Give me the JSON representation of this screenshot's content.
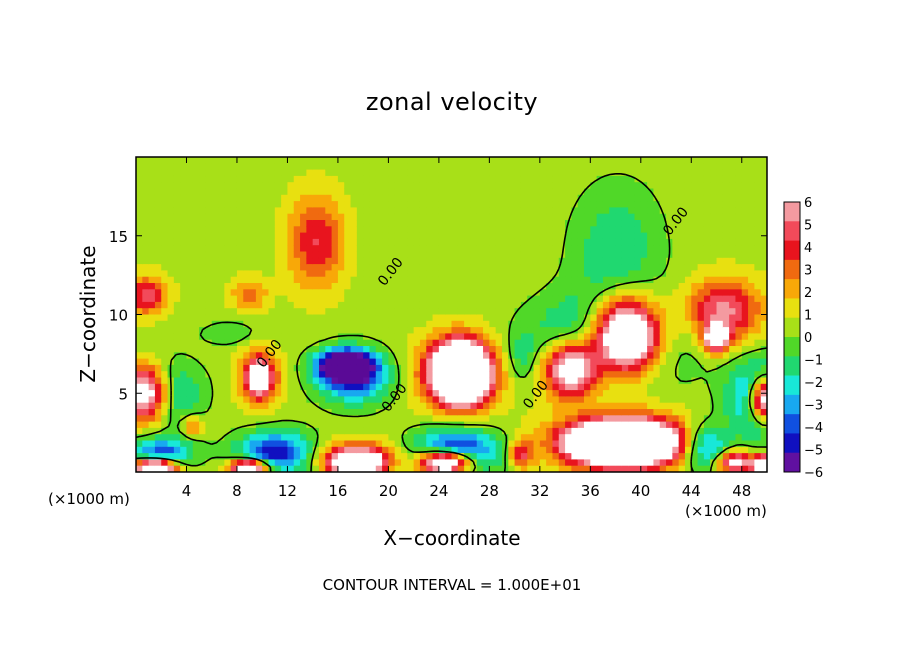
{
  "chart_data": {
    "type": "heatmap",
    "title": "zonal velocity",
    "xlabel": "X−coordinate",
    "ylabel": "Z−coordinate",
    "x_unit": "(×1000 m)",
    "x_ticks": [
      4,
      8,
      12,
      16,
      20,
      24,
      28,
      32,
      36,
      40,
      44,
      48
    ],
    "y_ticks": [
      5,
      10,
      15
    ],
    "xlim": [
      0,
      50
    ],
    "ylim": [
      0,
      20
    ],
    "colorbar": {
      "ticks": [
        "6",
        "5",
        "4",
        "3",
        "2",
        "1",
        "0",
        "−1",
        "−2",
        "−3",
        "−4",
        "−5",
        "−6"
      ],
      "colors": [
        "#f49aa0",
        "#f24a5a",
        "#e8141e",
        "#f06a10",
        "#f8a808",
        "#e8e010",
        "#a8e018",
        "#50d828",
        "#20d870",
        "#18e8d8",
        "#18a8f0",
        "#1050e0",
        "#1010c0",
        "#6010a0"
      ],
      "range": [
        -6,
        6
      ]
    },
    "contour_labels": [
      {
        "text": "0.00",
        "x": 42.8,
        "z": 15.9
      },
      {
        "text": "0.00",
        "x": 20.2,
        "z": 12.7
      },
      {
        "text": "0.00",
        "x": 10.6,
        "z": 7.5
      },
      {
        "text": "0.00",
        "x": 20.5,
        "z": 4.7
      },
      {
        "text": "0.00",
        "x": 31.7,
        "z": 4.9
      }
    ],
    "contour_interval_text": "CONTOUR INTERVAL = 1.000E+01",
    "features": [
      {
        "x": 14.3,
        "z": 14.6,
        "u": 3.8,
        "sx": 2.2,
        "sz": 3.0
      },
      {
        "x": 9.0,
        "z": 11.3,
        "u": 2.6,
        "sx": 1.4,
        "sz": 1.0
      },
      {
        "x": 0.8,
        "z": 11.2,
        "u": 4.3,
        "sx": 1.6,
        "sz": 1.2
      },
      {
        "x": 37.5,
        "z": 8.3,
        "u": -5.0,
        "sx": 5.5,
        "sz": 2.8
      },
      {
        "x": 38.8,
        "z": 8.6,
        "u": 14,
        "sx": 2.8,
        "sz": 2.4
      },
      {
        "x": 34.5,
        "z": 6.6,
        "u": 9,
        "sx": 2.2,
        "sz": 1.8
      },
      {
        "x": 38.0,
        "z": 14.0,
        "u": -2.2,
        "sx": 3.5,
        "sz": 4.0
      },
      {
        "x": 46.5,
        "z": 10.2,
        "u": 5.2,
        "sx": 3.0,
        "sz": 2.0
      },
      {
        "x": 46.0,
        "z": 8.5,
        "u": 9,
        "sx": 0.9,
        "sz": 0.8
      },
      {
        "x": 25.5,
        "z": 6.3,
        "u": 5.2,
        "sx": 3.2,
        "sz": 2.2
      },
      {
        "x": 25.8,
        "z": 6.3,
        "u": 12,
        "sx": 2.0,
        "sz": 1.8
      },
      {
        "x": 17.3,
        "z": 6.0,
        "u": -5.0,
        "sx": 2.8,
        "sz": 1.6
      },
      {
        "x": 16.5,
        "z": 6.8,
        "u": -9,
        "sx": 2.0,
        "sz": 0.9
      },
      {
        "x": 9.8,
        "z": 6.0,
        "u": 5.5,
        "sx": 1.5,
        "sz": 1.7
      },
      {
        "x": 9.8,
        "z": 6.0,
        "u": 5.0,
        "sx": 0.7,
        "sz": 0.8
      },
      {
        "x": 1.5,
        "z": 5.0,
        "u": -5.5,
        "sx": 3.0,
        "sz": 2.0
      },
      {
        "x": 0.7,
        "z": 5.0,
        "u": 12,
        "sx": 2.0,
        "sz": 1.8
      },
      {
        "x": 49.5,
        "z": 4.6,
        "u": -5.5,
        "sx": 2.4,
        "sz": 2.4
      },
      {
        "x": 49.8,
        "z": 4.6,
        "u": 11,
        "sx": 1.2,
        "sz": 1.4
      },
      {
        "x": 39.0,
        "z": 2.0,
        "u": 5.5,
        "sx": 5.5,
        "sz": 1.8
      },
      {
        "x": 38.5,
        "z": 1.8,
        "u": 14,
        "sx": 3.8,
        "sz": 1.2
      },
      {
        "x": 30.5,
        "z": 1.1,
        "u": 4.0,
        "sx": 1.0,
        "sz": 0.9
      },
      {
        "x": 17.5,
        "z": 1.0,
        "u": 5.0,
        "sx": 3.0,
        "sz": 1.0
      },
      {
        "x": 17.5,
        "z": 0.5,
        "u": 12,
        "sx": 1.8,
        "sz": 0.6
      },
      {
        "x": 25.5,
        "z": 1.3,
        "u": -5.5,
        "sx": 3.5,
        "sz": 1.5
      },
      {
        "x": 24.5,
        "z": 0.6,
        "u": 12,
        "sx": 2.0,
        "sz": 0.7
      },
      {
        "x": 11.0,
        "z": 1.2,
        "u": -5.5,
        "sx": 3.0,
        "sz": 1.4
      },
      {
        "x": 9.0,
        "z": 0.3,
        "u": 10,
        "sx": 1.5,
        "sz": 0.5
      },
      {
        "x": 2.0,
        "z": 1.2,
        "u": -4.5,
        "sx": 2.5,
        "sz": 1.0
      },
      {
        "x": 1.5,
        "z": 0.3,
        "u": 12,
        "sx": 1.6,
        "sz": 0.5
      },
      {
        "x": 4.5,
        "z": 2.9,
        "u": 3.0,
        "sx": 0.8,
        "sz": 0.6
      },
      {
        "x": 45.0,
        "z": 1.6,
        "u": -5.0,
        "sx": 2.0,
        "sz": 1.5
      },
      {
        "x": 47.5,
        "z": 0.6,
        "u": 6.5,
        "sx": 1.5,
        "sz": 0.7
      },
      {
        "x": 49.8,
        "z": 0.4,
        "u": 12,
        "sx": 0.8,
        "sz": 0.6
      },
      {
        "x": 30.5,
        "z": 7.2,
        "u": -1.5,
        "sx": 1.2,
        "sz": 1.5
      },
      {
        "x": 7.5,
        "z": 8.8,
        "u": -1.2,
        "sx": 2.5,
        "sz": 0.8
      }
    ]
  }
}
